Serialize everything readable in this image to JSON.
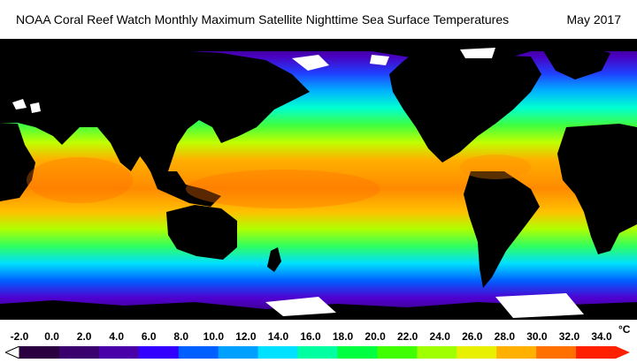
{
  "header": {
    "title": "NOAA Coral Reef Watch Monthly Maximum Satellite Nighttime Sea Surface Temperatures",
    "date": "May 2017"
  },
  "legend": {
    "ticks": [
      "-2.0",
      "0.0",
      "2.0",
      "4.0",
      "6.0",
      "8.0",
      "10.0",
      "12.0",
      "14.0",
      "16.0",
      "18.0",
      "20.0",
      "22.0",
      "24.0",
      "26.0",
      "28.0",
      "30.0",
      "32.0",
      "34.0"
    ],
    "unit": "°C",
    "colors": [
      "#2a0040",
      "#3a006e",
      "#4a00a8",
      "#3300ff",
      "#0060ff",
      "#00a0ff",
      "#00e0ff",
      "#00ffa0",
      "#00ff40",
      "#40ff00",
      "#a0ff00",
      "#e8f000",
      "#ffb000",
      "#ff7000",
      "#ff2000"
    ]
  },
  "map": {
    "background": "#000000",
    "ice_color": "#ffffff"
  }
}
